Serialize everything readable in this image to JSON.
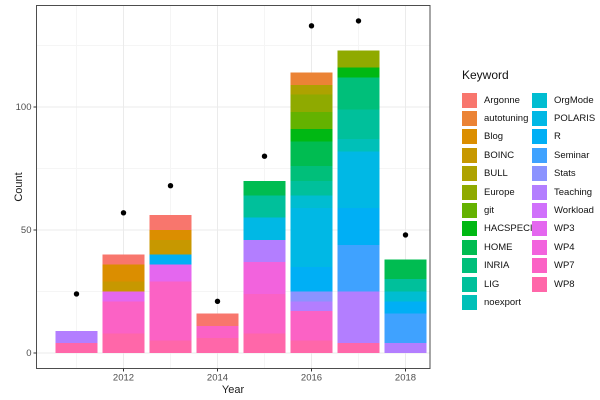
{
  "figure": {
    "background": "#FFFFFF",
    "panel_border_color": "#4D4D4D",
    "grid_major_color": "#EBEBEB",
    "grid_minor_color": "#F5F5F5",
    "tick_color": "#333333",
    "tick_label_color": "#4D4D4D",
    "point_color": "#000000"
  },
  "axes": {
    "x_label": "Year",
    "y_label": "Count",
    "x_ticks": [
      2012,
      2014,
      2016,
      2018
    ],
    "x_minor": [
      2011,
      2013,
      2015,
      2017
    ],
    "y_ticks": [
      0,
      50,
      100
    ],
    "y_minor": [
      25,
      75,
      125
    ]
  },
  "legend": {
    "title": "Keyword",
    "columns": [
      [
        "Argonne",
        "autotuning",
        "Blog",
        "BOINC",
        "BULL",
        "Europe",
        "git",
        "HACSPECIS",
        "HOME",
        "INRIA",
        "LIG",
        "noexport"
      ],
      [
        "OrgMode",
        "POLARIS",
        "R",
        "Seminar",
        "Stats",
        "Teaching",
        "Workload",
        "WP3",
        "WP4",
        "WP7",
        "WP8"
      ]
    ]
  },
  "keywords": [
    {
      "name": "Argonne",
      "color": "#F8766D"
    },
    {
      "name": "autotuning",
      "color": "#EB8335"
    },
    {
      "name": "Blog",
      "color": "#DB8E00"
    },
    {
      "name": "BOINC",
      "color": "#C79800"
    },
    {
      "name": "BULL",
      "color": "#AEA200"
    },
    {
      "name": "Europe",
      "color": "#8FAA00"
    },
    {
      "name": "git",
      "color": "#64B200"
    },
    {
      "name": "HACSPECIS",
      "color": "#00B813"
    },
    {
      "name": "HOME",
      "color": "#00BC51"
    },
    {
      "name": "INRIA",
      "color": "#00BF7A"
    },
    {
      "name": "LIG",
      "color": "#00C09B"
    },
    {
      "name": "noexport",
      "color": "#00C0B8"
    },
    {
      "name": "OrgMode",
      "color": "#00BDD1"
    },
    {
      "name": "POLARIS",
      "color": "#00B8E5"
    },
    {
      "name": "R",
      "color": "#00AFF5"
    },
    {
      "name": "Seminar",
      "color": "#3FA2FF"
    },
    {
      "name": "Stats",
      "color": "#8B93FF"
    },
    {
      "name": "Teaching",
      "color": "#B37EFF"
    },
    {
      "name": "Workload",
      "color": "#D070FB"
    },
    {
      "name": "WP3",
      "color": "#E467EF"
    },
    {
      "name": "WP4",
      "color": "#F263DD"
    },
    {
      "name": "WP7",
      "color": "#FB62C5"
    },
    {
      "name": "WP8",
      "color": "#FF67A9"
    }
  ],
  "chart_data": {
    "type": "bar",
    "stacked": true,
    "title": "",
    "xlabel": "Year",
    "ylabel": "Count",
    "xlim": [
      2010.4,
      2018.6
    ],
    "ylim": [
      -6,
      141
    ],
    "grid": true,
    "legend_position": "right",
    "bars": [
      {
        "year": 2011,
        "total": 9,
        "segments": [
          {
            "keyword": "WP8",
            "value": 4
          },
          {
            "keyword": "Teaching",
            "value": 5
          }
        ]
      },
      {
        "year": 2012,
        "total": 40,
        "segments": [
          {
            "keyword": "WP8",
            "value": 8
          },
          {
            "keyword": "WP7",
            "value": 13
          },
          {
            "keyword": "WP3",
            "value": 4
          },
          {
            "keyword": "BOINC",
            "value": 4
          },
          {
            "keyword": "Blog",
            "value": 7
          },
          {
            "keyword": "Argonne",
            "value": 4
          }
        ]
      },
      {
        "year": 2013,
        "total": 56,
        "segments": [
          {
            "keyword": "WP8",
            "value": 5
          },
          {
            "keyword": "WP7",
            "value": 24
          },
          {
            "keyword": "WP3",
            "value": 7
          },
          {
            "keyword": "R",
            "value": 4
          },
          {
            "keyword": "BOINC",
            "value": 6
          },
          {
            "keyword": "Blog",
            "value": 4
          },
          {
            "keyword": "Argonne",
            "value": 6
          }
        ]
      },
      {
        "year": 2014,
        "total": 16,
        "segments": [
          {
            "keyword": "WP8",
            "value": 6
          },
          {
            "keyword": "WP7",
            "value": 5
          },
          {
            "keyword": "Argonne",
            "value": 5
          }
        ]
      },
      {
        "year": 2015,
        "total": 70,
        "segments": [
          {
            "keyword": "WP8",
            "value": 8
          },
          {
            "keyword": "WP7",
            "value": 16
          },
          {
            "keyword": "WP4",
            "value": 13
          },
          {
            "keyword": "Teaching",
            "value": 9
          },
          {
            "keyword": "POLARIS",
            "value": 9
          },
          {
            "keyword": "LIG",
            "value": 9
          },
          {
            "keyword": "HOME",
            "value": 6
          }
        ]
      },
      {
        "year": 2016,
        "total": 114,
        "segments": [
          {
            "keyword": "WP8",
            "value": 5
          },
          {
            "keyword": "WP7",
            "value": 12
          },
          {
            "keyword": "Teaching",
            "value": 4
          },
          {
            "keyword": "Stats",
            "value": 4
          },
          {
            "keyword": "R",
            "value": 10
          },
          {
            "keyword": "POLARIS",
            "value": 24
          },
          {
            "keyword": "OrgMode",
            "value": 5
          },
          {
            "keyword": "LIG",
            "value": 6
          },
          {
            "keyword": "INRIA",
            "value": 6
          },
          {
            "keyword": "HOME",
            "value": 10
          },
          {
            "keyword": "HACSPECIS",
            "value": 5
          },
          {
            "keyword": "git",
            "value": 7
          },
          {
            "keyword": "Europe",
            "value": 7
          },
          {
            "keyword": "BULL",
            "value": 4
          },
          {
            "keyword": "autotuning",
            "value": 5
          }
        ]
      },
      {
        "year": 2017,
        "total": 123,
        "segments": [
          {
            "keyword": "WP8",
            "value": 4
          },
          {
            "keyword": "Teaching",
            "value": 21
          },
          {
            "keyword": "Seminar",
            "value": 19
          },
          {
            "keyword": "R",
            "value": 15
          },
          {
            "keyword": "POLARIS",
            "value": 23
          },
          {
            "keyword": "noexport",
            "value": 5
          },
          {
            "keyword": "LIG",
            "value": 12
          },
          {
            "keyword": "INRIA",
            "value": 13
          },
          {
            "keyword": "HACSPECIS",
            "value": 4
          },
          {
            "keyword": "Europe",
            "value": 7
          }
        ]
      },
      {
        "year": 2018,
        "total": 38,
        "segments": [
          {
            "keyword": "Teaching",
            "value": 4
          },
          {
            "keyword": "Seminar",
            "value": 12
          },
          {
            "keyword": "R",
            "value": 5
          },
          {
            "keyword": "OrgMode",
            "value": 4
          },
          {
            "keyword": "LIG",
            "value": 5
          },
          {
            "keyword": "HOME",
            "value": 8
          }
        ]
      }
    ],
    "points": [
      {
        "year": 2011,
        "value": 24
      },
      {
        "year": 2012,
        "value": 57
      },
      {
        "year": 2013,
        "value": 68
      },
      {
        "year": 2014,
        "value": 21
      },
      {
        "year": 2015,
        "value": 80
      },
      {
        "year": 2016,
        "value": 133
      },
      {
        "year": 2017,
        "value": 135
      },
      {
        "year": 2018,
        "value": 48
      }
    ]
  }
}
